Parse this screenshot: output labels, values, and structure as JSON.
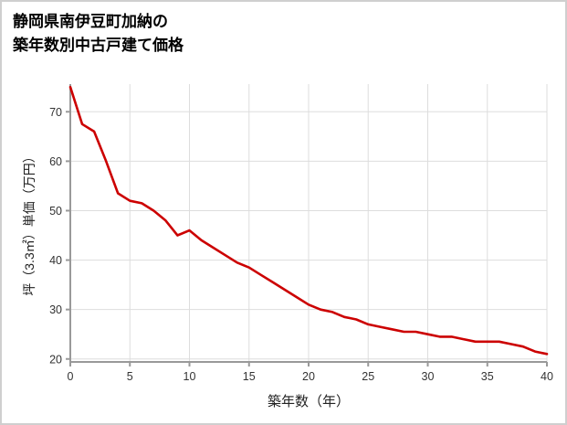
{
  "page": {
    "title_line1": "静岡県南伊豆町加納の",
    "title_line2": "築年数別中古戸建て価格"
  },
  "chart_data": {
    "type": "line",
    "title": "静岡県南伊豆町加納の築年数別中古戸建て価格",
    "xlabel": "築年数（年）",
    "ylabel": "坪（3.3㎡）単価（万円）",
    "x": [
      0,
      1,
      2,
      3,
      4,
      5,
      6,
      7,
      8,
      9,
      10,
      11,
      12,
      13,
      14,
      15,
      16,
      17,
      18,
      19,
      20,
      21,
      22,
      23,
      24,
      25,
      26,
      27,
      28,
      29,
      30,
      31,
      32,
      33,
      34,
      35,
      36,
      37,
      38,
      39,
      40
    ],
    "values": [
      75,
      67.5,
      66,
      60,
      53.5,
      52,
      51.5,
      50,
      48,
      45,
      46,
      44,
      42.5,
      41,
      39.5,
      38.5,
      37,
      35.5,
      34,
      32.5,
      31,
      30,
      29.5,
      28.5,
      28,
      27,
      26.5,
      26,
      25.5,
      25.5,
      25,
      24.5,
      24.5,
      24,
      23.5,
      23.5,
      23.5,
      23,
      22.5,
      21.5,
      21
    ],
    "xlim": [
      0,
      40
    ],
    "ylim": [
      19.4,
      75.6
    ],
    "x_ticks": [
      0,
      5,
      10,
      15,
      20,
      25,
      30,
      35,
      40
    ],
    "y_ticks": [
      20,
      30,
      40,
      50,
      60,
      70
    ],
    "line_color": "#cc0000",
    "grid": true,
    "grid_color": "#dddddd",
    "axis_color": "#999999",
    "legend": "none"
  }
}
